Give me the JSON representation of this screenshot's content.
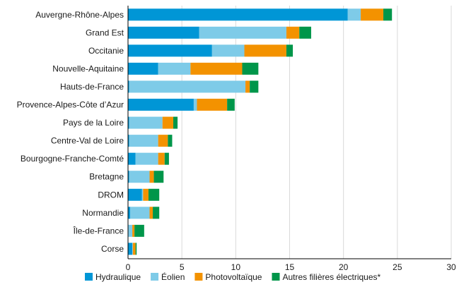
{
  "chart_data": {
    "type": "bar",
    "orientation": "horizontal",
    "stacked": true,
    "title": "",
    "xlabel": "",
    "ylabel": "",
    "xlim": [
      0,
      30
    ],
    "xticks": [
      0,
      5,
      10,
      15,
      20,
      25,
      30
    ],
    "grid": "vertical",
    "legend_position": "bottom",
    "categories": [
      "Auvergne-Rhône-Alpes",
      "Grand Est",
      "Occitanie",
      "Nouvelle-Aquitaine",
      "Hauts-de-France",
      "Provence-Alpes-Côte d’Azur",
      "Pays de la Loire",
      "Centre-Val de Loire",
      "Bourgogne-Franche-Comté",
      "Bretagne",
      "DROM",
      "Normandie",
      "Île-de-France",
      "Corse"
    ],
    "series": [
      {
        "name": "Hydraulique",
        "color": "#0096d6",
        "values": [
          20.4,
          6.6,
          7.8,
          2.8,
          0.1,
          6.1,
          0.1,
          0.1,
          0.7,
          0.1,
          1.3,
          0.2,
          0.05,
          0.4
        ]
      },
      {
        "name": "Éolien",
        "color": "#7ecbe8",
        "values": [
          1.2,
          8.1,
          3.0,
          3.0,
          10.8,
          0.3,
          3.1,
          2.7,
          2.1,
          1.9,
          0.1,
          1.8,
          0.35,
          0.05
        ]
      },
      {
        "name": "Photovoltaïque",
        "color": "#f39200",
        "values": [
          2.1,
          1.2,
          3.9,
          4.8,
          0.4,
          2.8,
          1.0,
          0.9,
          0.6,
          0.4,
          0.5,
          0.3,
          0.2,
          0.25
        ]
      },
      {
        "name": "Autres filières électriques*",
        "color": "#00964a",
        "values": [
          0.8,
          1.1,
          0.6,
          1.5,
          0.8,
          0.7,
          0.4,
          0.4,
          0.4,
          0.9,
          1.0,
          0.6,
          0.9,
          0.1
        ]
      }
    ]
  }
}
